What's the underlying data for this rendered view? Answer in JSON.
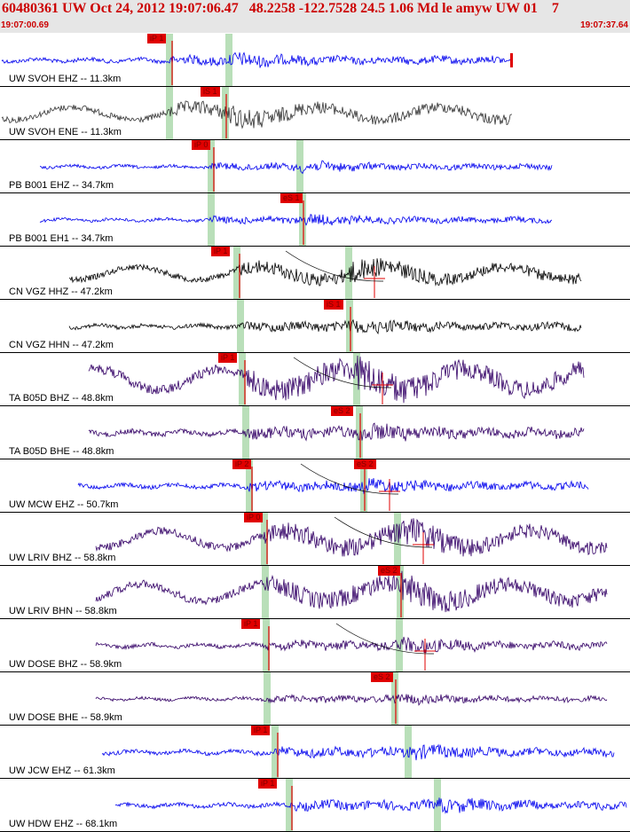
{
  "header": {
    "title": "60480361 UW Oct 24, 2012 19:07:06.47   48.2258 -122.7528 24.5 1.06 Md le amyw UW 01    7",
    "time_start": "19:07:00.69",
    "time_end": "19:07:37.64"
  },
  "colors": {
    "pick_box": "#e00000",
    "pick_text": "#800000",
    "window_highlight": "#b9dfb9",
    "header_text": "#cc0000",
    "header_bg": "#e6e6e6"
  },
  "traces": [
    {
      "label": "UW SVOH EHZ -- 11.3km",
      "color": "#0000ee",
      "amp": 8,
      "picks": [
        {
          "text": "iP 1",
          "phase": "P"
        }
      ],
      "p_window": true,
      "s_window": true,
      "has_end_marker": true,
      "amp_pick": false
    },
    {
      "label": "UW SVOH ENE -- 11.3km",
      "color": "#333333",
      "amp": 12,
      "picks": [
        {
          "text": "iS 1",
          "phase": "S"
        }
      ],
      "p_window": true,
      "s_window": true,
      "amp_pick": false
    },
    {
      "label": "PB B001 EHZ -- 34.7km",
      "color": "#0000ee",
      "amp": 6,
      "picks": [
        {
          "text": "iP 0",
          "phase": "P"
        }
      ],
      "p_window": true,
      "s_window": true,
      "amp_pick": false
    },
    {
      "label": "PB B001 EH1 -- 34.7km",
      "color": "#0000ee",
      "amp": 6,
      "picks": [
        {
          "text": "eS 1",
          "phase": "S"
        }
      ],
      "p_window": true,
      "s_window": true,
      "amp_pick": false
    },
    {
      "label": "CN VGZ HHZ -- 47.2km",
      "color": "#000000",
      "amp": 12,
      "picks": [
        {
          "text": "iP 1",
          "phase": "P"
        }
      ],
      "p_window": true,
      "s_window": true,
      "amp_pick": true
    },
    {
      "label": "CN VGZ HHN -- 47.2km",
      "color": "#000000",
      "amp": 8,
      "picks": [
        {
          "text": "iS 1",
          "phase": "S"
        }
      ],
      "p_window": true,
      "s_window": true,
      "amp_pick": false
    },
    {
      "label": "TA B05D BHZ -- 48.8km",
      "color": "#330066",
      "amp": 20,
      "picks": [
        {
          "text": "iP 1",
          "phase": "P"
        }
      ],
      "p_window": true,
      "s_window": true,
      "amp_pick": true
    },
    {
      "label": "TA B05D BHE -- 48.8km",
      "color": "#330066",
      "amp": 10,
      "picks": [
        {
          "text": "eS 2",
          "phase": "S"
        }
      ],
      "p_window": true,
      "s_window": true,
      "amp_pick": false
    },
    {
      "label": "UW MCW EHZ -- 50.7km",
      "color": "#0000ee",
      "amp": 8,
      "picks": [
        {
          "text": "iP 2",
          "phase": "P"
        },
        {
          "text": "eS 2",
          "phase": "S"
        }
      ],
      "p_window": true,
      "s_window": true,
      "amp_pick": true
    },
    {
      "label": "UW LRIV BHZ -- 58.8km",
      "color": "#330066",
      "amp": 16,
      "picks": [
        {
          "text": "iP 0",
          "phase": "P"
        }
      ],
      "p_window": true,
      "s_window": true,
      "amp_pick": true
    },
    {
      "label": "UW LRIV BHN -- 58.8km",
      "color": "#330066",
      "amp": 16,
      "picks": [
        {
          "text": "eS 2",
          "phase": "S"
        }
      ],
      "p_window": true,
      "s_window": true,
      "amp_pick": false
    },
    {
      "label": "UW DOSE BHZ -- 58.9km",
      "color": "#330066",
      "amp": 8,
      "picks": [
        {
          "text": "iP 1",
          "phase": "P"
        }
      ],
      "p_window": true,
      "s_window": true,
      "amp_pick": true
    },
    {
      "label": "UW DOSE BHE -- 58.9km",
      "color": "#330066",
      "amp": 6,
      "picks": [
        {
          "text": "eS 2",
          "phase": "S"
        }
      ],
      "p_window": true,
      "s_window": true,
      "amp_pick": false
    },
    {
      "label": "UW JCW EHZ -- 61.3km",
      "color": "#0000ee",
      "amp": 8,
      "picks": [
        {
          "text": "iP 1",
          "phase": "P"
        }
      ],
      "p_window": true,
      "s_window": true,
      "amp_pick": false
    },
    {
      "label": "UW HDW EHZ -- 68.1km",
      "color": "#0000ee",
      "amp": 8,
      "picks": [
        {
          "text": "iP 1",
          "phase": "P"
        }
      ],
      "p_window": true,
      "s_window": true,
      "amp_pick": false
    }
  ]
}
